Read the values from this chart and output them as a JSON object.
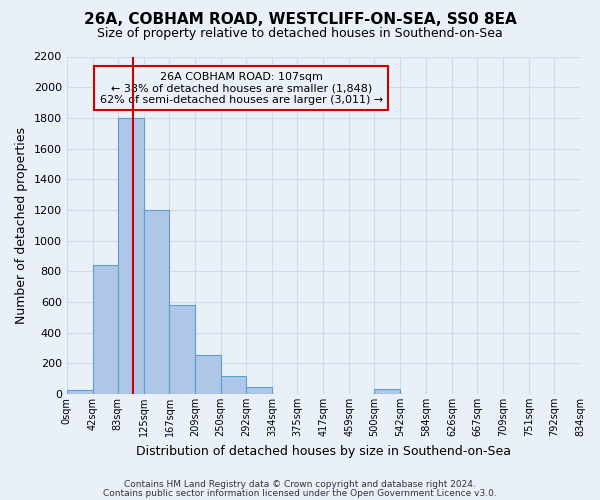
{
  "title1": "26A, COBHAM ROAD, WESTCLIFF-ON-SEA, SS0 8EA",
  "title2": "Size of property relative to detached houses in Southend-on-Sea",
  "xlabel": "Distribution of detached houses by size in Southend-on-Sea",
  "ylabel": "Number of detached properties",
  "footnote1": "Contains HM Land Registry data © Crown copyright and database right 2024.",
  "footnote2": "Contains public sector information licensed under the Open Government Licence v3.0.",
  "bin_edges": [
    0,
    42,
    83,
    125,
    167,
    209,
    250,
    292,
    334,
    375,
    417,
    459,
    500,
    542,
    584,
    626,
    667,
    709,
    751,
    792,
    834
  ],
  "bar_heights": [
    25,
    840,
    1800,
    1200,
    580,
    255,
    120,
    45,
    0,
    0,
    0,
    0,
    35,
    0,
    0,
    0,
    0,
    0,
    0,
    0
  ],
  "bar_color": "#aec6e8",
  "bar_edge_color": "#5a9fd4",
  "bg_color": "#eaf0f8",
  "grid_color": "#d0daea",
  "property_size": 107,
  "red_line_color": "#cc0000",
  "annotation_line1": "26A COBHAM ROAD: 107sqm",
  "annotation_line2": "← 38% of detached houses are smaller (1,848)",
  "annotation_line3": "62% of semi-detached houses are larger (3,011) →",
  "annotation_box_color": "#cc0000",
  "ylim": [
    0,
    2200
  ],
  "yticks": [
    0,
    200,
    400,
    600,
    800,
    1000,
    1200,
    1400,
    1600,
    1800,
    2000,
    2200
  ],
  "tick_labels": [
    "0sqm",
    "42sqm",
    "83sqm",
    "125sqm",
    "167sqm",
    "209sqm",
    "250sqm",
    "292sqm",
    "334sqm",
    "375sqm",
    "417sqm",
    "459sqm",
    "500sqm",
    "542sqm",
    "584sqm",
    "626sqm",
    "667sqm",
    "709sqm",
    "751sqm",
    "792sqm",
    "834sqm"
  ],
  "title1_fontsize": 11,
  "title2_fontsize": 9,
  "ylabel_fontsize": 9,
  "xlabel_fontsize": 9,
  "footnote_fontsize": 6.5
}
